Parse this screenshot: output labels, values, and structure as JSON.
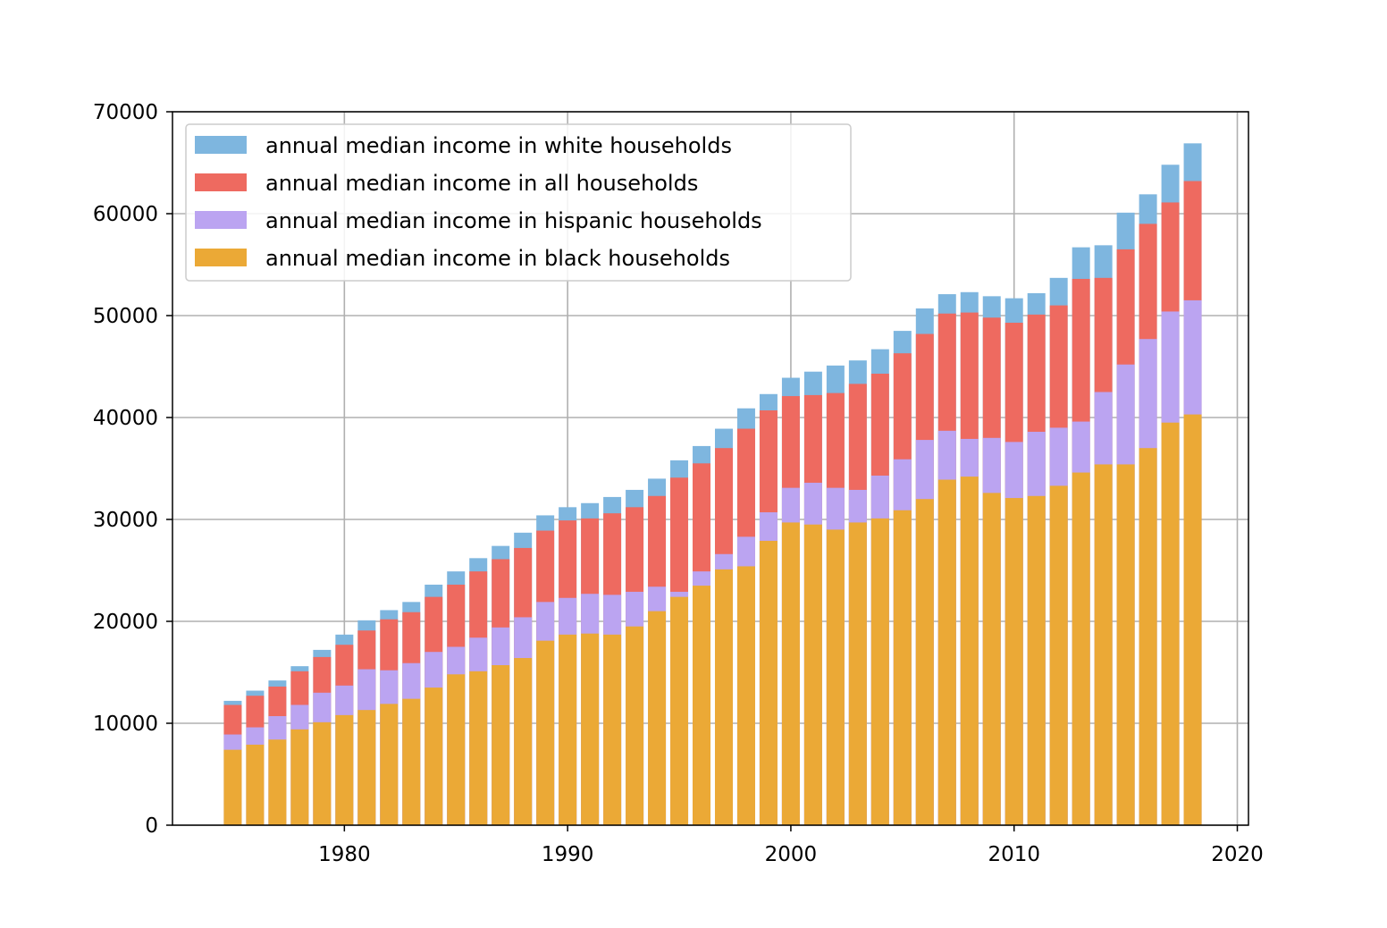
{
  "chart_data": {
    "type": "bar",
    "stacked": false,
    "overlaid": true,
    "title": "",
    "xlabel": "",
    "ylabel": "",
    "xlim": [
      1972.3,
      2020.5
    ],
    "ylim": [
      0,
      70000
    ],
    "grid": true,
    "legend_position": "top-left",
    "x_ticks": [
      1980,
      1990,
      2000,
      2010,
      2020
    ],
    "y_ticks": [
      0,
      10000,
      20000,
      30000,
      40000,
      50000,
      60000,
      70000
    ],
    "x": [
      1975,
      1976,
      1977,
      1978,
      1979,
      1980,
      1981,
      1982,
      1983,
      1984,
      1985,
      1986,
      1987,
      1988,
      1989,
      1990,
      1991,
      1992,
      1993,
      1994,
      1995,
      1996,
      1997,
      1998,
      1999,
      2000,
      2001,
      2002,
      2003,
      2004,
      2005,
      2006,
      2007,
      2008,
      2009,
      2010,
      2011,
      2012,
      2013,
      2014,
      2015,
      2016,
      2017,
      2018
    ],
    "series": [
      {
        "name": "annual median income in white households",
        "color": "#7eb6df",
        "values": [
          12200,
          13200,
          14200,
          15600,
          17200,
          18700,
          20100,
          21100,
          21900,
          23600,
          24900,
          26200,
          27400,
          28700,
          30400,
          31200,
          31600,
          32200,
          32900,
          34000,
          35800,
          37200,
          38900,
          40900,
          42300,
          43900,
          44500,
          45100,
          45600,
          46700,
          48500,
          50700,
          52100,
          52300,
          51900,
          51700,
          52200,
          53700,
          56700,
          56900,
          60100,
          61900,
          64800,
          66900
        ]
      },
      {
        "name": "annual median income in all households",
        "color": "#ee6a60",
        "values": [
          11800,
          12700,
          13600,
          15100,
          16500,
          17700,
          19100,
          20200,
          20900,
          22400,
          23600,
          24900,
          26100,
          27200,
          28900,
          29900,
          30100,
          30600,
          31200,
          32300,
          34100,
          35500,
          37000,
          38900,
          40700,
          42100,
          42200,
          42400,
          43300,
          44300,
          46300,
          48200,
          50200,
          50300,
          49800,
          49300,
          50100,
          51000,
          53600,
          53700,
          56500,
          59000,
          61100,
          63200
        ]
      },
      {
        "name": "annual median income in hispanic households",
        "color": "#bba4f1",
        "values": [
          8900,
          9600,
          10700,
          11800,
          13000,
          13700,
          15300,
          15200,
          15900,
          17000,
          17500,
          18400,
          19400,
          20400,
          21900,
          22300,
          22700,
          22600,
          22900,
          23400,
          22900,
          24900,
          26600,
          28300,
          30700,
          33100,
          33600,
          33100,
          32900,
          34300,
          35900,
          37800,
          38700,
          37900,
          38000,
          37600,
          38600,
          39000,
          39600,
          42500,
          45200,
          47700,
          50400,
          51500
        ]
      },
      {
        "name": "annual median income in black households",
        "color": "#eba936",
        "values": [
          7400,
          7900,
          8400,
          9400,
          10100,
          10800,
          11300,
          11900,
          12400,
          13500,
          14800,
          15100,
          15700,
          16400,
          18100,
          18700,
          18800,
          18700,
          19500,
          21000,
          22400,
          23500,
          25100,
          25400,
          27900,
          29700,
          29500,
          29000,
          29700,
          30100,
          30900,
          32000,
          33900,
          34200,
          32600,
          32100,
          32300,
          33300,
          34600,
          35400,
          35400,
          37000,
          39500,
          40300
        ]
      }
    ]
  }
}
